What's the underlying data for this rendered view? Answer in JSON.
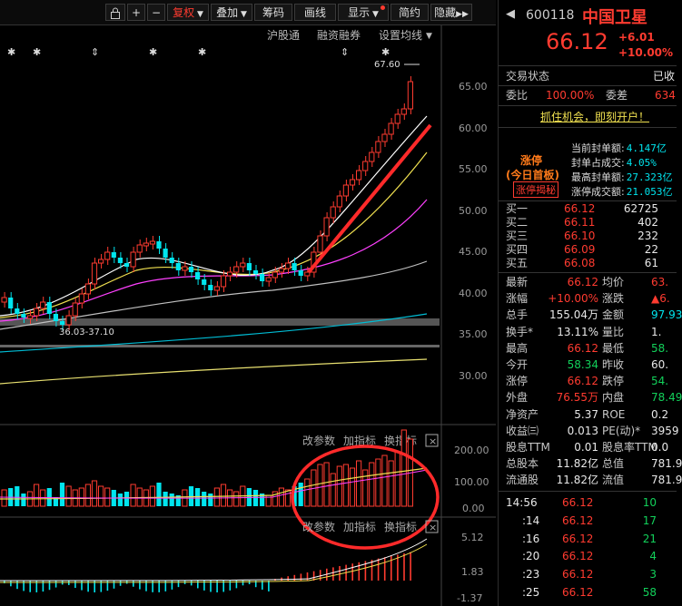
{
  "toolbar": {
    "items": [
      {
        "id": "lock",
        "label": "",
        "icon": "lock-icon"
      },
      {
        "id": "plus",
        "label": "+",
        "icon": ""
      },
      {
        "id": "minus",
        "label": "−",
        "icon": ""
      },
      {
        "id": "fuquan",
        "label": "复权",
        "icon": "chevron-down-icon",
        "active": true
      },
      {
        "id": "diejia",
        "label": "叠加",
        "icon": "chevron-down-icon"
      },
      {
        "id": "chouma",
        "label": "筹码",
        "icon": ""
      },
      {
        "id": "huaxian",
        "label": "画线",
        "icon": ""
      },
      {
        "id": "xianshi",
        "label": "显示",
        "icon": "chevron-down-icon"
      },
      {
        "id": "jianyue",
        "label": "简约",
        "icon": ""
      },
      {
        "id": "yincang",
        "label": "隐藏",
        "icon": "double-chevron-right-icon"
      }
    ]
  },
  "chart_links": {
    "hgt": "沪股通",
    "rzrq": "融资融券",
    "settings": "设置均线"
  },
  "price_chart": {
    "y_ticks": [
      "65.00",
      "60.00",
      "55.00",
      "50.00",
      "45.00",
      "40.00",
      "35.00",
      "30.00"
    ],
    "high_label": "67.60",
    "low_label": "36.03-37.10"
  },
  "volume_panel": {
    "buttons": [
      "改参数",
      "加指标",
      "换指标"
    ],
    "y_ticks": [
      "200.00",
      "100.00",
      "0.00"
    ]
  },
  "macd_panel": {
    "buttons": [
      "改参数",
      "加指标",
      "换指标"
    ],
    "y_ticks": [
      "5.12",
      "1.83",
      "-1.37"
    ]
  },
  "stock": {
    "code": "600118",
    "name": "中国卫星",
    "price": "66.12",
    "change": "+6.01",
    "change_pct": "+10.00%"
  },
  "trade_status": {
    "label": "交易状态",
    "value": "已收"
  },
  "weibi": {
    "label": "委比",
    "value": "100.00%",
    "label2": "委差",
    "value2": "634"
  },
  "promo": "抓住机会，即刻开户！",
  "limit_up": {
    "tag": "涨停",
    "tag2": "(今日首板)",
    "tag3": "涨停揭秘",
    "rows": [
      {
        "label": "当前封单额:",
        "value": "4.147亿"
      },
      {
        "label": "封单占成交:",
        "value": "4.05%"
      },
      {
        "label": "最高封单额:",
        "value": "27.323亿"
      },
      {
        "label": "涨停成交额:",
        "value": "21.053亿"
      }
    ]
  },
  "bids": [
    {
      "label": "买一",
      "price": "66.12",
      "vol": "62725"
    },
    {
      "label": "买二",
      "price": "66.11",
      "vol": "402"
    },
    {
      "label": "买三",
      "price": "66.10",
      "vol": "232"
    },
    {
      "label": "买四",
      "price": "66.09",
      "vol": "22"
    },
    {
      "label": "买五",
      "price": "66.08",
      "vol": "61"
    }
  ],
  "quote": [
    {
      "l1": "最新",
      "v1": "66.12",
      "c1": "red",
      "l2": "均价",
      "v2": "63.",
      "c2": "red"
    },
    {
      "l1": "涨幅",
      "v1": "+10.00%",
      "c1": "red",
      "l2": "涨跌",
      "v2": "▲6.",
      "c2": "red"
    },
    {
      "l1": "总手",
      "v1": "155.04万",
      "c1": "white",
      "l2": "金额",
      "v2": "97.93",
      "c2": "cyan"
    },
    {
      "l1": "换手*",
      "v1": "13.11%",
      "c1": "white",
      "l2": "量比",
      "v2": "1.",
      "c2": "white"
    },
    {
      "l1": "最高",
      "v1": "66.12",
      "c1": "red",
      "l2": "最低",
      "v2": "58.",
      "c2": "green"
    },
    {
      "l1": "今开",
      "v1": "58.34",
      "c1": "green",
      "l2": "昨收",
      "v2": "60.",
      "c2": "white"
    },
    {
      "l1": "涨停",
      "v1": "66.12",
      "c1": "red",
      "l2": "跌停",
      "v2": "54.",
      "c2": "green"
    },
    {
      "l1": "外盘",
      "v1": "76.55万",
      "c1": "red",
      "l2": "内盘",
      "v2": "78.49",
      "c2": "green"
    },
    {
      "l1": "净资产",
      "v1": "5.37",
      "c1": "white",
      "l2": "ROE",
      "v2": "0.2",
      "c2": "white"
    },
    {
      "l1": "收益㈢",
      "v1": "0.013",
      "c1": "white",
      "l2": "PE(动)*",
      "v2": "3959",
      "c2": "white"
    },
    {
      "l1": "股息TTM",
      "v1": "0.01",
      "c1": "white",
      "l2": "股息率TTM",
      "v2": "0.0",
      "c2": "white"
    },
    {
      "l1": "总股本",
      "v1": "11.82亿",
      "c1": "white",
      "l2": "总值",
      "v2": "781.9",
      "c2": "white"
    },
    {
      "l1": "流通股",
      "v1": "11.82亿",
      "c1": "white",
      "l2": "流值",
      "v2": "781.9",
      "c2": "white"
    }
  ],
  "ticks": [
    {
      "time": "14:56",
      "price": "66.12",
      "vol": "10"
    },
    {
      "time": ":14",
      "price": "66.12",
      "vol": "17"
    },
    {
      "time": ":16",
      "price": "66.12",
      "vol": "21"
    },
    {
      "time": ":20",
      "price": "66.12",
      "vol": "4"
    },
    {
      "time": ":23",
      "price": "66.12",
      "vol": "3"
    },
    {
      "time": ":25",
      "price": "66.12",
      "vol": "58"
    }
  ],
  "colors": {
    "up": "#ff3b30",
    "down": "#00e5ee",
    "ma5": "#ffffff",
    "ma10": "#f0e050",
    "ma20": "#ff40ff",
    "ma60": "#c0c0c0",
    "ma120": "#00bcd4",
    "ma250": "#e8e070"
  }
}
